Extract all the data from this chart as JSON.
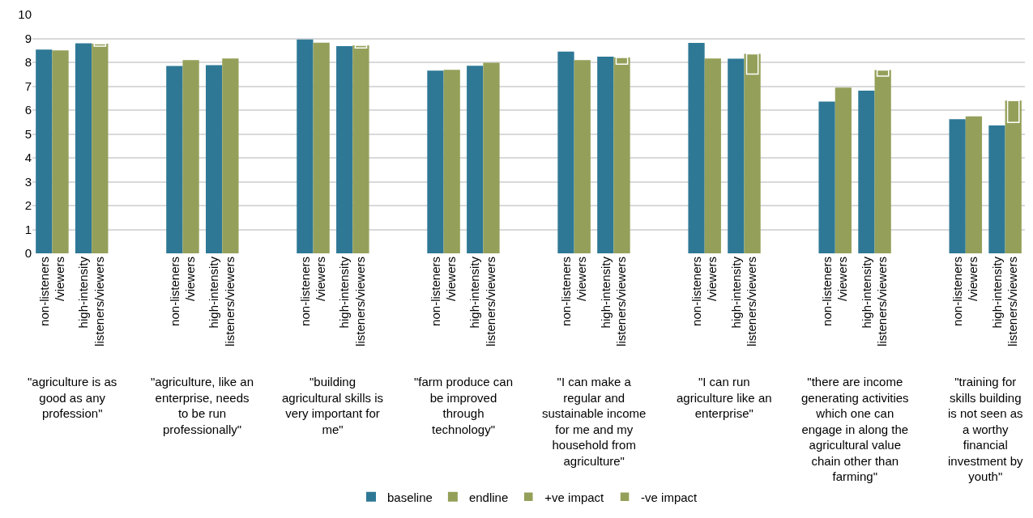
{
  "chart_data": {
    "type": "bar",
    "categories": [
      "non-listeners\n/viewers",
      "high-intensity\nlisteners/viewers",
      "non-listeners\n/viewers",
      "high-intensity\nlisteners/viewers",
      "non-listeners\n/viewers",
      "high-intensity\nlisteners/viewers",
      "non-listeners\n/viewers",
      "high-intensity\nlisteners/viewers",
      "non-listeners\n/viewers",
      "high-intensity\nlisteners/viewers",
      "non-listeners\n/viewers",
      "high-intensity\nlisteners/viewers",
      "non-listeners\n/viewers",
      "high-intensity\nlisteners/viewers",
      "non-listeners\n/viewers",
      "high-intensity\nlisteners/viewers"
    ],
    "series": [
      {
        "name": "baseline",
        "color": "#2e7896",
        "values": [
          8.53,
          8.8,
          7.85,
          7.88,
          8.96,
          8.68,
          7.65,
          7.86,
          8.45,
          8.24,
          8.81,
          8.15,
          6.36,
          6.81,
          5.62,
          5.36
        ]
      },
      {
        "name": "endline",
        "color": "#94a05a",
        "values": [
          8.5,
          8.78,
          8.09,
          8.16,
          8.82,
          8.71,
          7.69,
          7.98,
          8.09,
          8.2,
          8.16,
          8.36,
          6.94,
          7.68,
          5.74,
          6.4
        ]
      },
      {
        "name": "+ve impact",
        "color": "#94a05a",
        "base": [
          null,
          null,
          null,
          null,
          null,
          8.6,
          null,
          null,
          null,
          7.92,
          null,
          7.51,
          null,
          7.42,
          null,
          5.48
        ],
        "values": [
          null,
          null,
          null,
          null,
          null,
          0.11,
          null,
          null,
          null,
          0.28,
          null,
          0.85,
          null,
          0.26,
          null,
          0.92
        ]
      },
      {
        "name": "-ve impact",
        "color": "#94a05a",
        "base": [
          null,
          8.68,
          null,
          null,
          null,
          null,
          null,
          null,
          null,
          null,
          null,
          null,
          null,
          null,
          null,
          null
        ],
        "values": [
          null,
          0.1,
          null,
          null,
          null,
          null,
          null,
          null,
          null,
          null,
          null,
          null,
          null,
          null,
          null,
          null
        ]
      }
    ],
    "annotations": [
      "\"agriculture is as\ngood as any\nprofession\"",
      "\"agriculture, like an\nenterprise, needs\nto be run\nprofessionally\"",
      "\"building\nagricultural skills is\nvery important for\nme\"",
      "\"farm produce can\nbe improved\nthrough\ntechnology\"",
      "\"I can make a\nregular and\nsustainable income\nfor me and my\nhousehold from\nagriculture\"",
      "\"I can run\nagriculture like an\nenterprise\"",
      "\"there are income\ngenerating activities\nwhich one can\nengage in along the\nagricultural value\nchain other than\nfarming\"",
      "\"training for\nskills building\nis not seen as\na worthy\nfinancial\ninvestment by\nyouth\""
    ],
    "ylim": [
      0,
      10
    ],
    "yticks": [
      0,
      1,
      2,
      3,
      4,
      5,
      6,
      7,
      8,
      9,
      10
    ],
    "grid": "y",
    "legend": "bottom"
  }
}
